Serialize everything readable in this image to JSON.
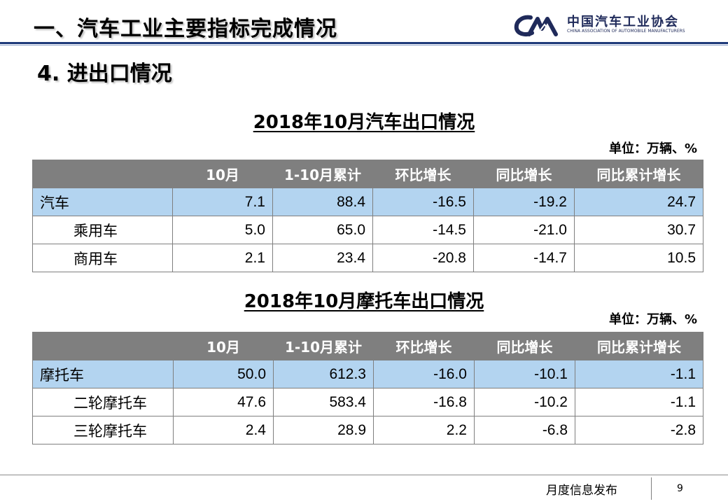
{
  "header": {
    "title": "一、汽车工业主要指标完成情况",
    "logo_name": "中国汽车工业协会",
    "logo_sub": "CHINA ASSOCIATION OF AUTOMOBILE MANUFACTURERS",
    "logo_mark_text": "CAM"
  },
  "section": {
    "title": "4. 进出口情况"
  },
  "auto_export": {
    "title": "2018年10月汽车出口情况",
    "unit": "单位：万辆、%",
    "columns": [
      "",
      "10月",
      "1-10月累计",
      "环比增长",
      "同比增长",
      "同比累计增长"
    ],
    "rows": [
      {
        "name": "汽车",
        "values": [
          "7.1",
          "88.4",
          "-16.5",
          "-19.2",
          "24.7"
        ]
      },
      {
        "name": "乘用车",
        "values": [
          "5.0",
          "65.0",
          "-14.5",
          "-21.0",
          "30.7"
        ]
      },
      {
        "name": "商用车",
        "values": [
          "2.1",
          "23.4",
          "-20.8",
          "-14.7",
          "10.5"
        ]
      }
    ]
  },
  "moto_export": {
    "title": "2018年10月摩托车出口情况",
    "unit": "单位：万辆、%",
    "columns": [
      "",
      "10月",
      "1-10月累计",
      "环比增长",
      "同比增长",
      "同比累计增长"
    ],
    "rows": [
      {
        "name": "摩托车",
        "values": [
          "50.0",
          "612.3",
          "-16.0",
          "-10.1",
          "-1.1"
        ]
      },
      {
        "name": "二轮摩托车",
        "values": [
          "47.6",
          "583.4",
          "-16.8",
          "-10.2",
          "-1.1"
        ]
      },
      {
        "name": "三轮摩托车",
        "values": [
          "2.4",
          "28.9",
          "2.2",
          "-6.8",
          "-2.8"
        ]
      }
    ]
  },
  "footer": {
    "label": "月度信息发布",
    "page": "9"
  },
  "colors": {
    "header_gray": "#7f7f7f",
    "highlight_blue": "#b3d4f0",
    "brand_navy": "#1f2a5a"
  }
}
